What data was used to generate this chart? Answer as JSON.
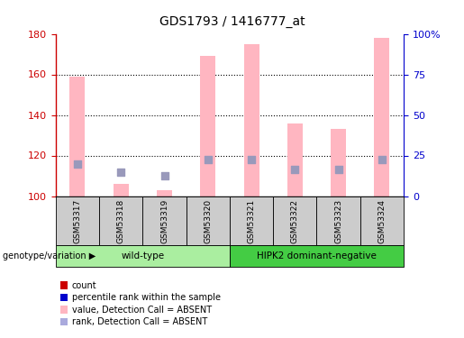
{
  "title": "GDS1793 / 1416777_at",
  "samples": [
    "GSM53317",
    "GSM53318",
    "GSM53319",
    "GSM53320",
    "GSM53321",
    "GSM53322",
    "GSM53323",
    "GSM53324"
  ],
  "bar_values": [
    159,
    106,
    103,
    169,
    175,
    136,
    133,
    178
  ],
  "rank_dots": [
    116,
    112,
    110,
    118,
    118,
    113,
    113,
    118
  ],
  "ylim_left": [
    100,
    180
  ],
  "ylim_right": [
    0,
    100
  ],
  "yticks_left": [
    100,
    120,
    140,
    160,
    180
  ],
  "ytick_labels_right": [
    "0",
    "25",
    "50",
    "75",
    "100%"
  ],
  "bar_color": "#FFB6C1",
  "dot_color": "#9999BB",
  "dot_size": 28,
  "groups": [
    {
      "label": "wild-type",
      "start": 0,
      "end": 3,
      "color": "#AAEEA0"
    },
    {
      "label": "HIPK2 dominant-negative",
      "start": 4,
      "end": 7,
      "color": "#44CC44"
    }
  ],
  "legend_items": [
    {
      "color": "#CC0000",
      "label": "count"
    },
    {
      "color": "#0000CC",
      "label": "percentile rank within the sample"
    },
    {
      "color": "#FFB6C1",
      "label": "value, Detection Call = ABSENT"
    },
    {
      "color": "#AAAADD",
      "label": "rank, Detection Call = ABSENT"
    }
  ],
  "left_axis_color": "#CC0000",
  "right_axis_color": "#0000CC",
  "genotype_label": "genotype/variation"
}
